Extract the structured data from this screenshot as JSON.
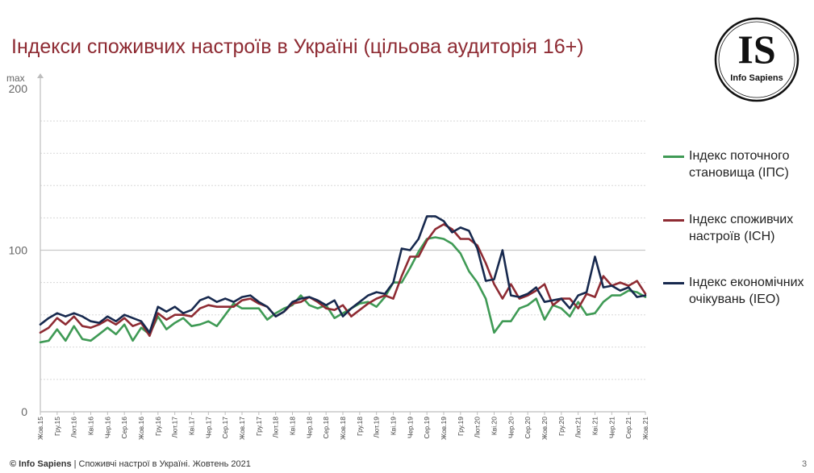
{
  "title": "Індекси споживчих настроїв в Україні (цільова аудиторія 16+)",
  "logo": {
    "mark": "IS",
    "name": "Info Sapiens"
  },
  "footer": {
    "brand": "© Info Sapiens",
    "text": " | Споживчі настрої в Україні. Жовтень 2021"
  },
  "page_number": "3",
  "colors": {
    "ips": "#3f9a55",
    "isn": "#8e2b33",
    "ieo": "#17294e",
    "title": "#8e2b33"
  },
  "chart_data": {
    "type": "line",
    "title": "",
    "xlabel": "",
    "ylabel": "",
    "y_max_label": "max",
    "ylim": [
      0,
      200
    ],
    "yticks": [
      0,
      100,
      200
    ],
    "grid": "horizontal dotted lines every 20, solid line at 100",
    "legend_position": "right",
    "x": [
      "Жов.15",
      "Лис.15",
      "Гру.15",
      "Січ.16",
      "Лют.16",
      "Бер.16",
      "Кві.16",
      "Тра.16",
      "Чер.16",
      "Лип.16",
      "Сер.16",
      "Вер.16",
      "Жов.16",
      "Лис.16",
      "Гру.16",
      "Січ.17",
      "Лют.17",
      "Бер.17",
      "Кві.17",
      "Тра.17",
      "Чер.17",
      "Лип.17",
      "Сер.17",
      "Вер.17",
      "Жов.17",
      "Лис.17",
      "Гру.17",
      "Січ.18",
      "Лют.18",
      "Бер.18",
      "Кві.18",
      "Тра.18",
      "Чер.18",
      "Лип.18",
      "Сер.18",
      "Вер.18",
      "Жов.18",
      "Лис.18",
      "Гру.18",
      "Січ.19",
      "Лют.19",
      "Бер.19",
      "Кві.19",
      "Тра.19",
      "Чер.19",
      "Лип.19",
      "Сер.19",
      "Вер.19",
      "Жов.19",
      "Лис.19",
      "Гру.19",
      "Січ.20",
      "Лют.20",
      "Бер.20",
      "Кві.20",
      "Тра.20",
      "Чер.20",
      "Лип.20",
      "Сер.20",
      "Вер.20",
      "Жов.20",
      "Лис.20",
      "Гру.20",
      "Січ.21",
      "Лют.21",
      "Бер.21",
      "Кві.21",
      "Тра.21",
      "Чер.21",
      "Лип.21",
      "Сер.21",
      "Вер.21",
      "Жов.21"
    ],
    "x_tick_labels": [
      "Жов.15",
      "Гру.15",
      "Лют.16",
      "Кві.16",
      "Чер.16",
      "Сер.16",
      "Жов.16",
      "Гру.16",
      "Лют.17",
      "Кві.17",
      "Чер.17",
      "Сер.17",
      "Жов.17",
      "Гру.17",
      "Лют.18",
      "Кві.18",
      "Чер.18",
      "Сер.18",
      "Жов.18",
      "Гру.18",
      "Лют.19",
      "Кві.19",
      "Чер.19",
      "Сер.19",
      "Жов.19",
      "Гру.19",
      "Лют.20",
      "Кві.20",
      "Чер.20",
      "Сер.20",
      "Жов.20",
      "Гру.20",
      "Лют.21",
      "Кві.21",
      "Чер.21",
      "Сер.21",
      "Жов.21"
    ],
    "series": [
      {
        "key": "ips",
        "name": "Індекс поточного становища (ІПС)",
        "values": [
          43,
          44,
          51,
          44,
          53,
          45,
          44,
          48,
          52,
          48,
          54,
          44,
          52,
          48,
          59,
          51,
          55,
          58,
          53,
          54,
          56,
          53,
          60,
          67,
          64,
          64,
          64,
          57,
          61,
          64,
          66,
          72,
          66,
          64,
          66,
          58,
          61,
          64,
          67,
          68,
          65,
          71,
          80,
          80,
          89,
          99,
          107,
          108,
          107,
          104,
          98,
          87,
          80,
          70,
          49,
          56,
          56,
          64,
          66,
          70,
          57,
          66,
          64,
          59,
          68,
          60,
          61,
          68,
          72,
          72,
          75,
          74,
          71
        ]
      },
      {
        "key": "isn",
        "name": "Індекс споживчих настроїв (ІСН)",
        "values": [
          49,
          52,
          58,
          54,
          59,
          53,
          52,
          54,
          57,
          54,
          58,
          53,
          55,
          47,
          61,
          57,
          60,
          60,
          59,
          64,
          66,
          65,
          65,
          65,
          69,
          70,
          67,
          65,
          59,
          62,
          67,
          68,
          71,
          68,
          64,
          63,
          66,
          59,
          63,
          67,
          70,
          72,
          70,
          84,
          96,
          96,
          106,
          113,
          116,
          113,
          107,
          107,
          103,
          92,
          79,
          70,
          79,
          70,
          72,
          75,
          79,
          66,
          70,
          70,
          64,
          73,
          71,
          84,
          78,
          80,
          78,
          81,
          73
        ]
      },
      {
        "key": "ieo",
        "name": "Індекс економічних очікувань (ІЕО)",
        "values": [
          54,
          58,
          61,
          59,
          61,
          59,
          56,
          55,
          59,
          56,
          60,
          58,
          56,
          49,
          65,
          62,
          65,
          61,
          63,
          69,
          71,
          68,
          70,
          68,
          71,
          72,
          68,
          65,
          59,
          62,
          68,
          70,
          71,
          69,
          66,
          69,
          59,
          64,
          68,
          72,
          74,
          73,
          80,
          101,
          100,
          107,
          121,
          121,
          118,
          111,
          114,
          112,
          101,
          81,
          82,
          100,
          72,
          71,
          73,
          77,
          68,
          69,
          70,
          64,
          72,
          74,
          96,
          77,
          78,
          75,
          77,
          71,
          72
        ]
      }
    ]
  }
}
